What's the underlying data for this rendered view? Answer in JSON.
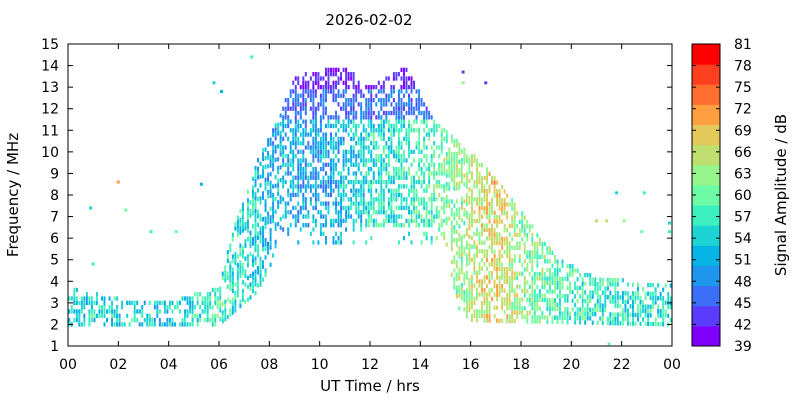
{
  "chart_data": {
    "type": "heatmap",
    "title": "2026-02-02",
    "xlabel": "UT Time / hrs",
    "ylabel": "Frequency / MHz",
    "xlim": [
      0,
      24
    ],
    "ylim": [
      1,
      15
    ],
    "x_ticks": [
      "00",
      "02",
      "04",
      "06",
      "08",
      "10",
      "12",
      "14",
      "16",
      "18",
      "20",
      "22",
      "00"
    ],
    "y_ticks": [
      "1",
      "2",
      "3",
      "4",
      "5",
      "6",
      "7",
      "8",
      "9",
      "10",
      "11",
      "12",
      "13",
      "14",
      "15"
    ],
    "colorbar": {
      "label": "Signal Amplitude / dB",
      "ticks": [
        "39",
        "42",
        "45",
        "48",
        "51",
        "54",
        "57",
        "60",
        "63",
        "66",
        "69",
        "72",
        "75",
        "78",
        "81"
      ],
      "range": [
        39,
        81
      ],
      "colors": [
        "#7f00ff",
        "#5a3cfd",
        "#3c6ff7",
        "#1e96ee",
        "#06b4e5",
        "#1ed3d3",
        "#3cf0c0",
        "#6dfba6",
        "#96f58b",
        "#bfe070",
        "#e3c85a",
        "#ffa040",
        "#ff7030",
        "#ff4020",
        "#ff0000"
      ]
    },
    "envelope": {
      "comment_free": true,
      "lower_freq": [
        [
          0,
          2.0
        ],
        [
          6,
          2.0
        ],
        [
          7.5,
          3.5
        ],
        [
          8.5,
          5.8
        ],
        [
          15,
          5.8
        ],
        [
          15.5,
          2.8
        ],
        [
          16,
          2.2
        ],
        [
          24,
          2.0
        ]
      ],
      "upper_freq": [
        [
          0,
          3.7
        ],
        [
          2,
          3.2
        ],
        [
          4,
          3.0
        ],
        [
          6,
          3.8
        ],
        [
          6.6,
          6.5
        ],
        [
          7.5,
          9.5
        ],
        [
          8.5,
          12.0
        ],
        [
          9,
          13.5
        ],
        [
          11,
          14.0
        ],
        [
          12,
          13.0
        ],
        [
          13.5,
          14.0
        ],
        [
          14.5,
          11.5
        ],
        [
          15.5,
          10.5
        ],
        [
          16.5,
          9.5
        ],
        [
          17.5,
          8.0
        ],
        [
          18.5,
          6.5
        ],
        [
          19.5,
          5.0
        ],
        [
          21,
          4.2
        ],
        [
          24,
          3.8
        ]
      ]
    },
    "peak_amplitude_db": [
      [
        0,
        54
      ],
      [
        2,
        55
      ],
      [
        4,
        53
      ],
      [
        6,
        58
      ],
      [
        8,
        52
      ],
      [
        10,
        50
      ],
      [
        12,
        55
      ],
      [
        14,
        58
      ],
      [
        16,
        64
      ],
      [
        17,
        68
      ],
      [
        18,
        62
      ],
      [
        20,
        58
      ],
      [
        22,
        56
      ],
      [
        24,
        55
      ]
    ],
    "isolated_points": [
      {
        "x": 0.9,
        "y": 7.4,
        "db": 54
      },
      {
        "x": 1.0,
        "y": 4.8,
        "db": 57
      },
      {
        "x": 2.0,
        "y": 8.6,
        "db": 72
      },
      {
        "x": 2.3,
        "y": 7.3,
        "db": 60
      },
      {
        "x": 3.3,
        "y": 6.3,
        "db": 57
      },
      {
        "x": 4.3,
        "y": 6.3,
        "db": 60
      },
      {
        "x": 5.3,
        "y": 8.5,
        "db": 51
      },
      {
        "x": 5.8,
        "y": 13.2,
        "db": 54
      },
      {
        "x": 6.1,
        "y": 12.8,
        "db": 51
      },
      {
        "x": 7.3,
        "y": 14.4,
        "db": 57
      },
      {
        "x": 15.7,
        "y": 13.7,
        "db": 42
      },
      {
        "x": 15.7,
        "y": 13.2,
        "db": 63
      },
      {
        "x": 16.6,
        "y": 13.2,
        "db": 42
      },
      {
        "x": 21.0,
        "y": 6.8,
        "db": 66
      },
      {
        "x": 21.4,
        "y": 6.8,
        "db": 66
      },
      {
        "x": 21.8,
        "y": 8.1,
        "db": 54
      },
      {
        "x": 22.1,
        "y": 6.8,
        "db": 63
      },
      {
        "x": 22.9,
        "y": 8.1,
        "db": 57
      },
      {
        "x": 22.8,
        "y": 6.3,
        "db": 60
      },
      {
        "x": 23.9,
        "y": 6.7,
        "db": 54
      },
      {
        "x": 23.9,
        "y": 6.3,
        "db": 57
      },
      {
        "x": 21.5,
        "y": 1.1,
        "db": 60
      }
    ]
  }
}
